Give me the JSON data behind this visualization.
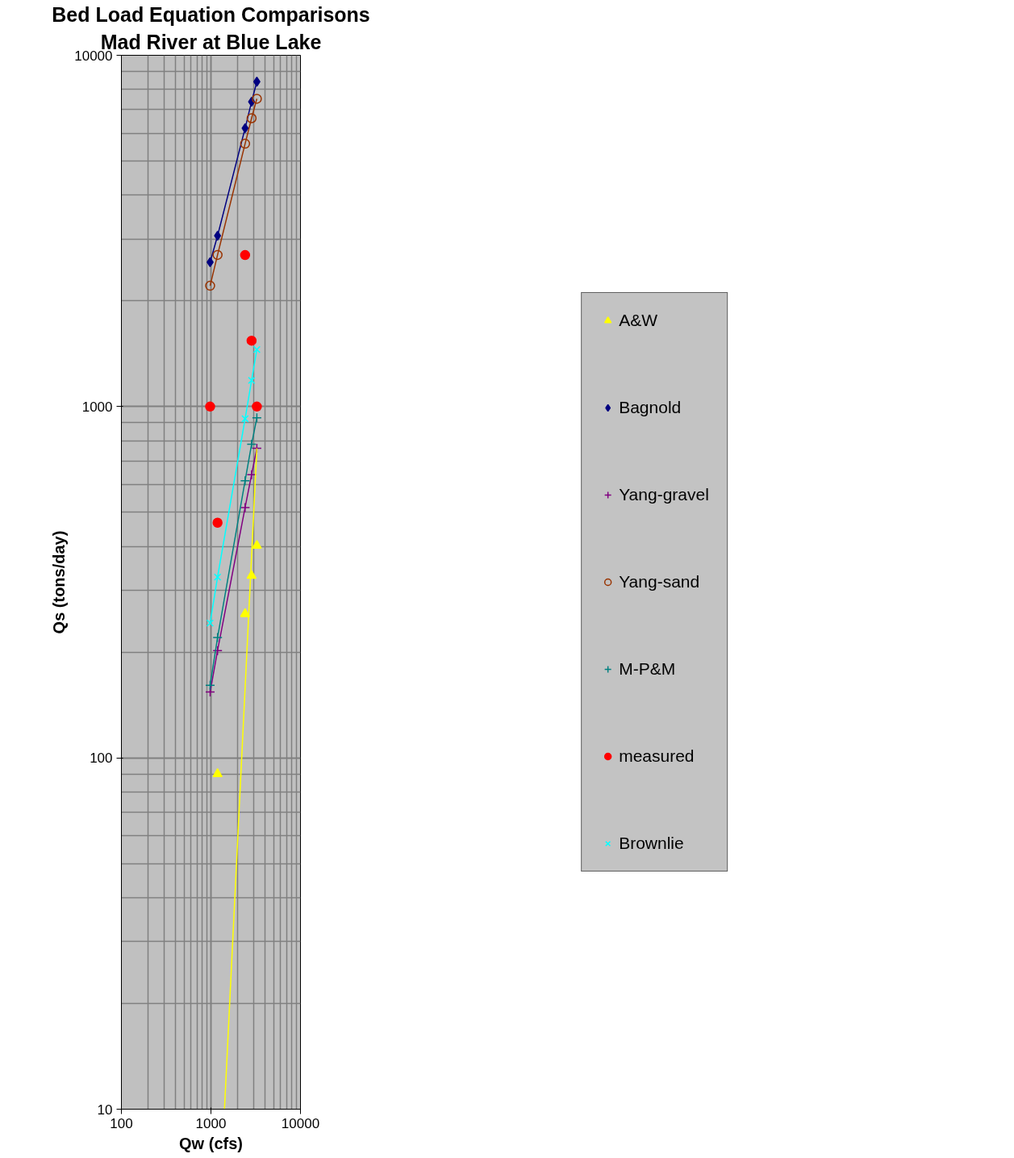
{
  "chart_data": {
    "type": "line",
    "title": "Bed Load Equation Comparisons",
    "subtitle": "Mad River at Blue Lake",
    "xlabel": "Qw (cfs)",
    "ylabel": "Qs (tons/day)",
    "x": [
      979,
      1185,
      2407,
      2843,
      3256
    ],
    "series": [
      {
        "name": "A&W",
        "type": "scatter",
        "marker": "triangle",
        "color": "#ffff00",
        "x": [
          1185,
          2407,
          2843,
          3256
        ],
        "values": [
          90,
          257,
          330,
          402
        ]
      },
      {
        "name": "Bagnold",
        "marker": "diamond",
        "color": "#000080",
        "values": [
          2576,
          3063,
          6200,
          7375,
          8410
        ]
      },
      {
        "name": "Yang-gravel",
        "marker": "cross",
        "color": "#800080",
        "values": [
          154,
          202,
          516,
          640,
          761
        ]
      },
      {
        "name": "Yang-sand",
        "marker": "circle_open",
        "color": "#993300",
        "values": [
          2208,
          2702,
          5600,
          6620,
          7520
        ]
      },
      {
        "name": "M-P&M",
        "marker": "cross",
        "color": "#008080",
        "values": [
          161,
          220,
          615,
          781,
          929
        ]
      },
      {
        "name": "measured",
        "type": "scatter",
        "marker": "circle",
        "color": "#ff0000",
        "values": [
          1000,
          467,
          2700,
          1540,
          1000
        ]
      },
      {
        "name": "Brownlie",
        "marker": "x",
        "color": "#00ffff",
        "values": [
          242,
          327,
          923,
          1187,
          1454
        ]
      },
      {
        "marker": "none",
        "color": "#ffff00",
        "x": [
          1416,
          3256
        ],
        "values": [
          10,
          761
        ]
      }
    ],
    "log": "xy",
    "xlim": [
      100,
      10000
    ],
    "ylim": [
      10,
      10000
    ],
    "xticks": [
      100,
      1000,
      10000
    ],
    "yticks": [
      10,
      100,
      1000,
      10000
    ],
    "grid": true,
    "legend": "right"
  }
}
